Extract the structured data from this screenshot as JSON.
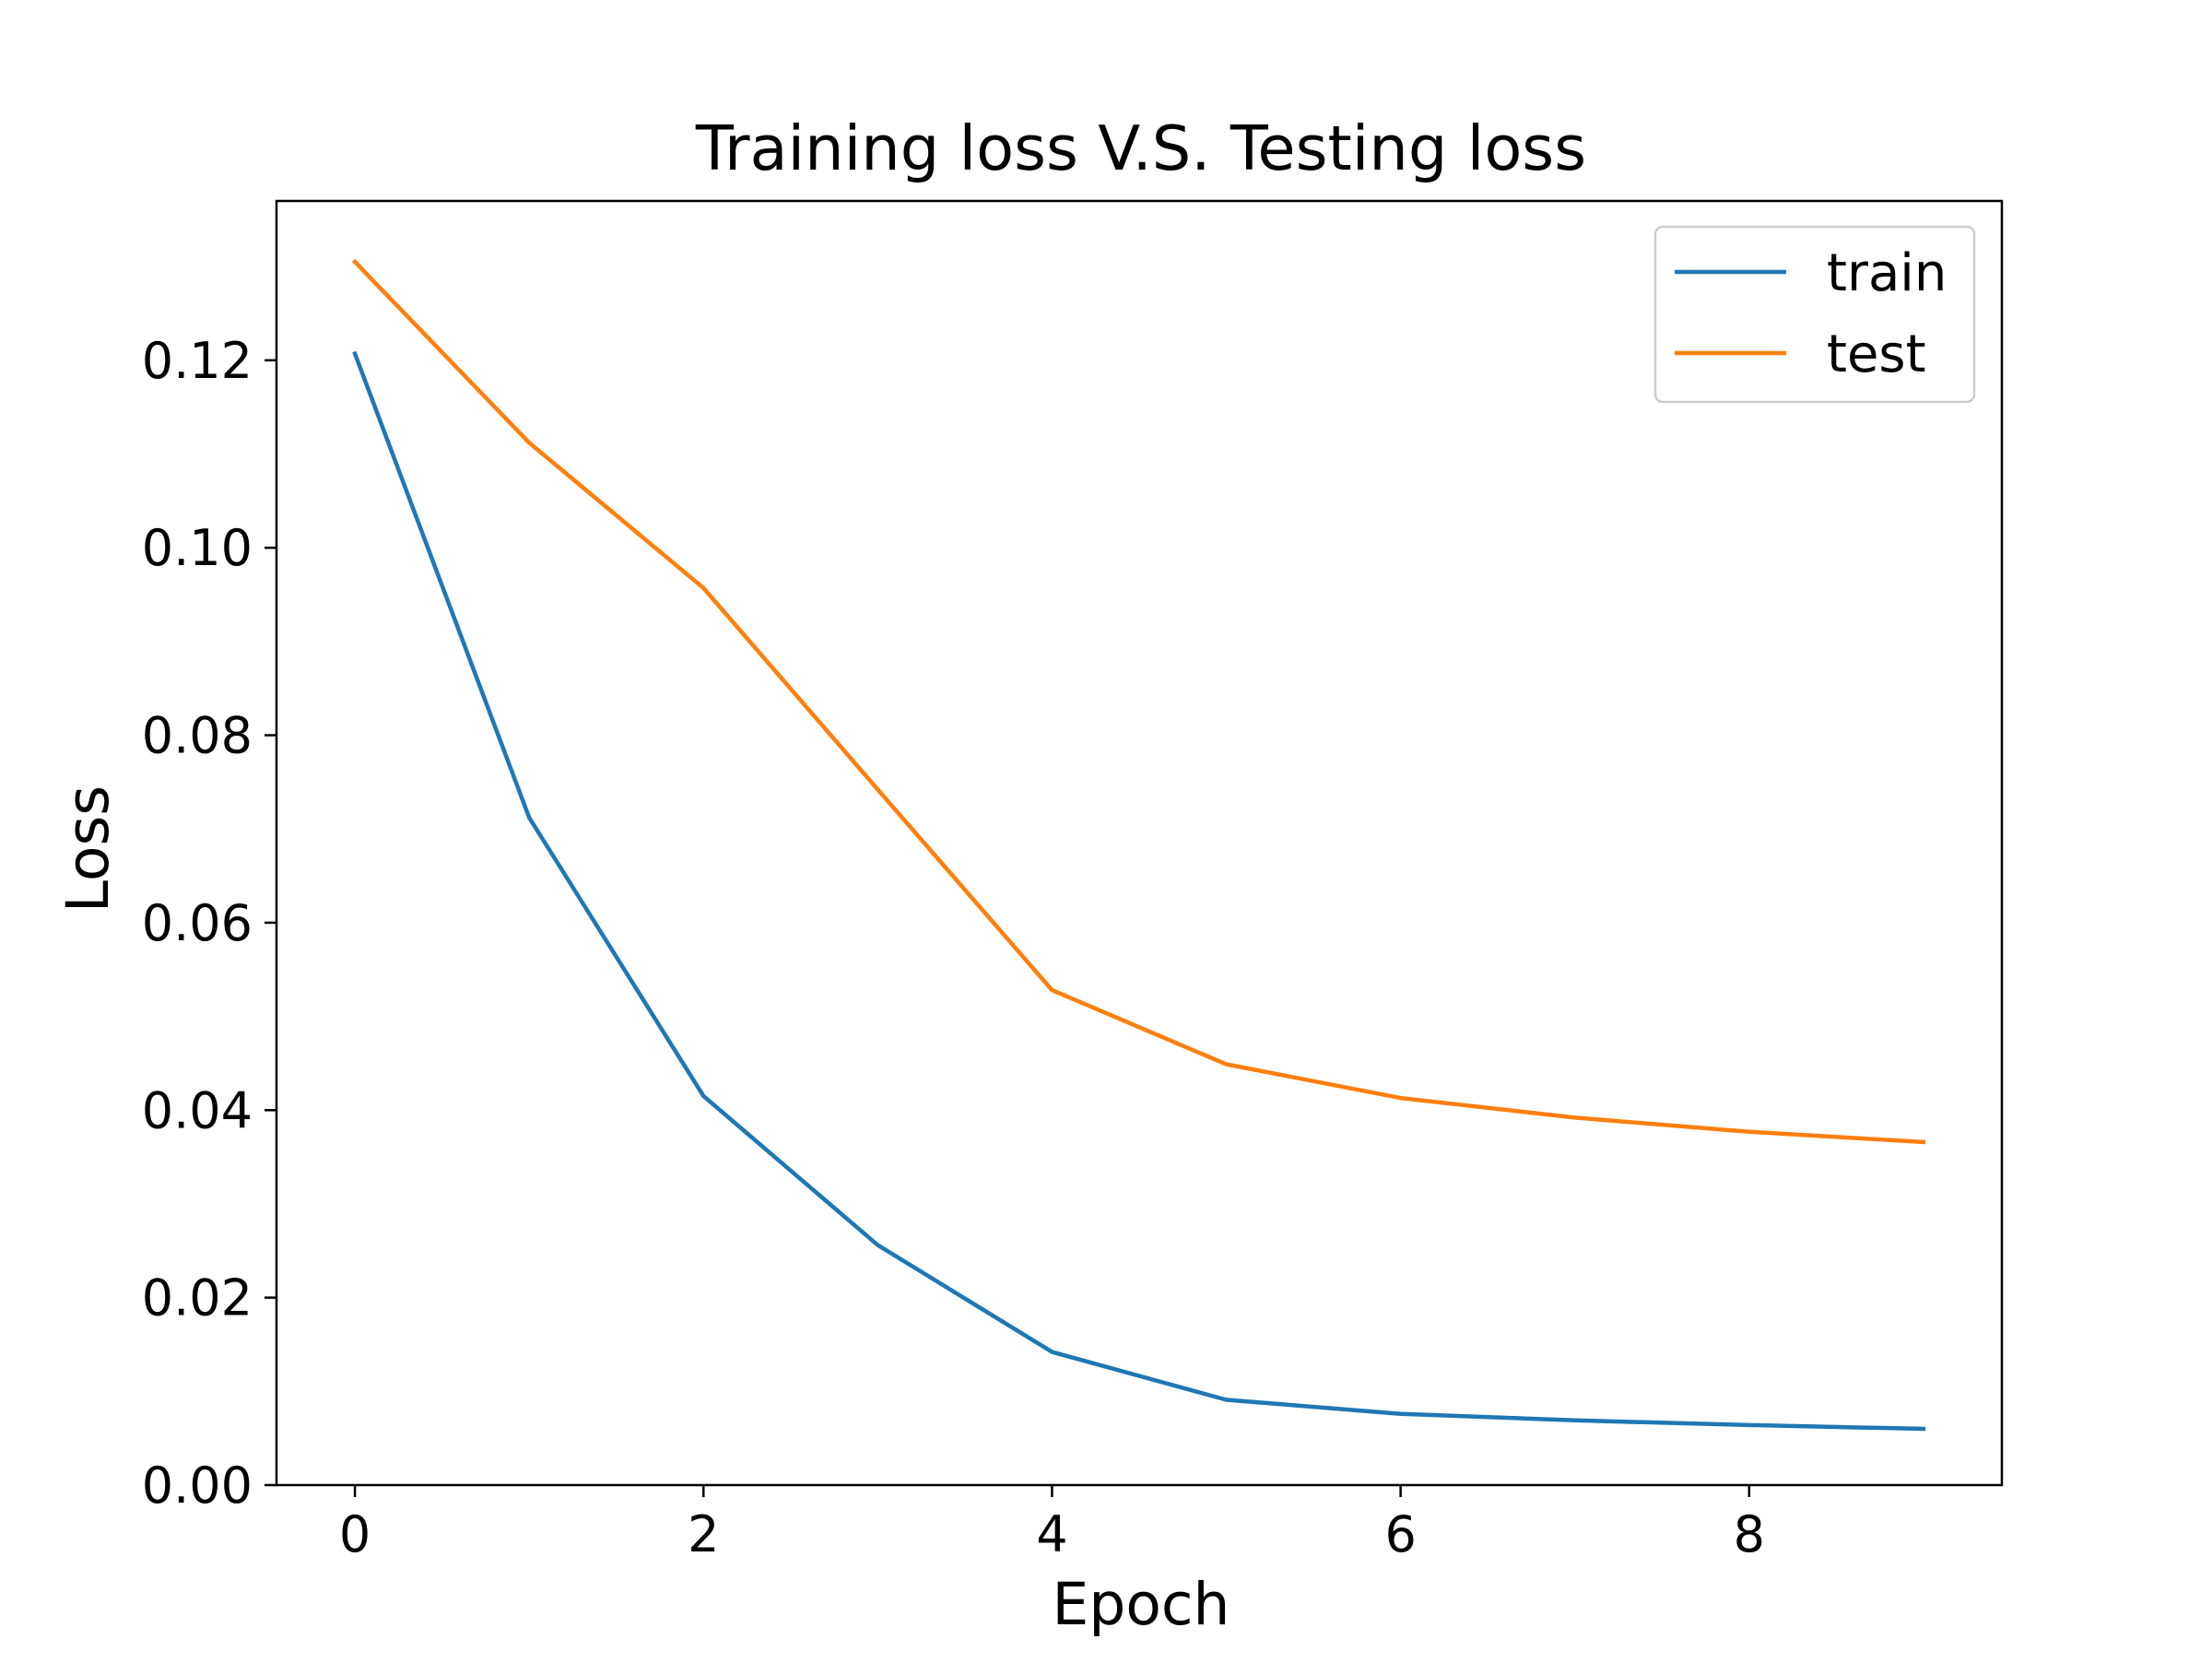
{
  "chart_data": {
    "type": "line",
    "title": "Training loss V.S. Testing loss",
    "xlabel": "Epoch",
    "ylabel": "Loss",
    "x": [
      0,
      1,
      2,
      3,
      4,
      5,
      6,
      7,
      8,
      9
    ],
    "xlim": [
      -0.45,
      9.45
    ],
    "ylim": [
      0,
      0.137
    ],
    "xticks": [
      0,
      2,
      4,
      6,
      8
    ],
    "xtick_labels": [
      "0",
      "2",
      "4",
      "6",
      "8"
    ],
    "yticks": [
      0,
      0.02,
      0.04,
      0.06,
      0.08,
      0.1,
      0.12
    ],
    "ytick_labels": [
      "0.00",
      "0.02",
      "0.04",
      "0.06",
      "0.08",
      "0.10",
      "0.12"
    ],
    "grid": false,
    "legend_position": "top-right",
    "series": [
      {
        "name": "train",
        "color": "#1f77b4",
        "values": [
          0.1207,
          0.0712,
          0.0415,
          0.0256,
          0.0142,
          0.0091,
          0.0076,
          0.0069,
          0.0064,
          0.006
        ]
      },
      {
        "name": "test",
        "color": "#ff7f0e",
        "values": [
          0.1305,
          0.1112,
          0.0957,
          0.0742,
          0.0528,
          0.0449,
          0.0413,
          0.0392,
          0.0377,
          0.0366
        ]
      }
    ]
  }
}
